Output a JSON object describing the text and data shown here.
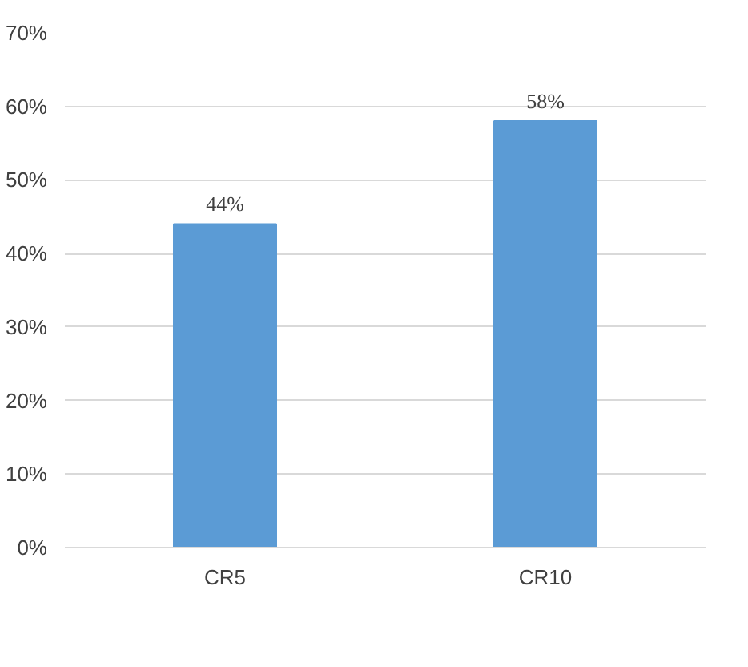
{
  "chart_data": {
    "type": "bar",
    "categories": [
      "CR5",
      "CR10"
    ],
    "values": [
      44,
      58
    ],
    "color": "#5b9bd5",
    "ylim": [
      0,
      70
    ],
    "yticks": [
      {
        "value": 0,
        "label": "0%"
      },
      {
        "value": 10,
        "label": "10%"
      },
      {
        "value": 20,
        "label": "20%"
      },
      {
        "value": 30,
        "label": "30%"
      },
      {
        "value": 40,
        "label": "40%"
      },
      {
        "value": 50,
        "label": "50%"
      },
      {
        "value": 60,
        "label": "60%"
      },
      {
        "value": 70,
        "label": "70%"
      }
    ],
    "value_labels": [
      "44%",
      "58%"
    ],
    "grid": "y"
  }
}
